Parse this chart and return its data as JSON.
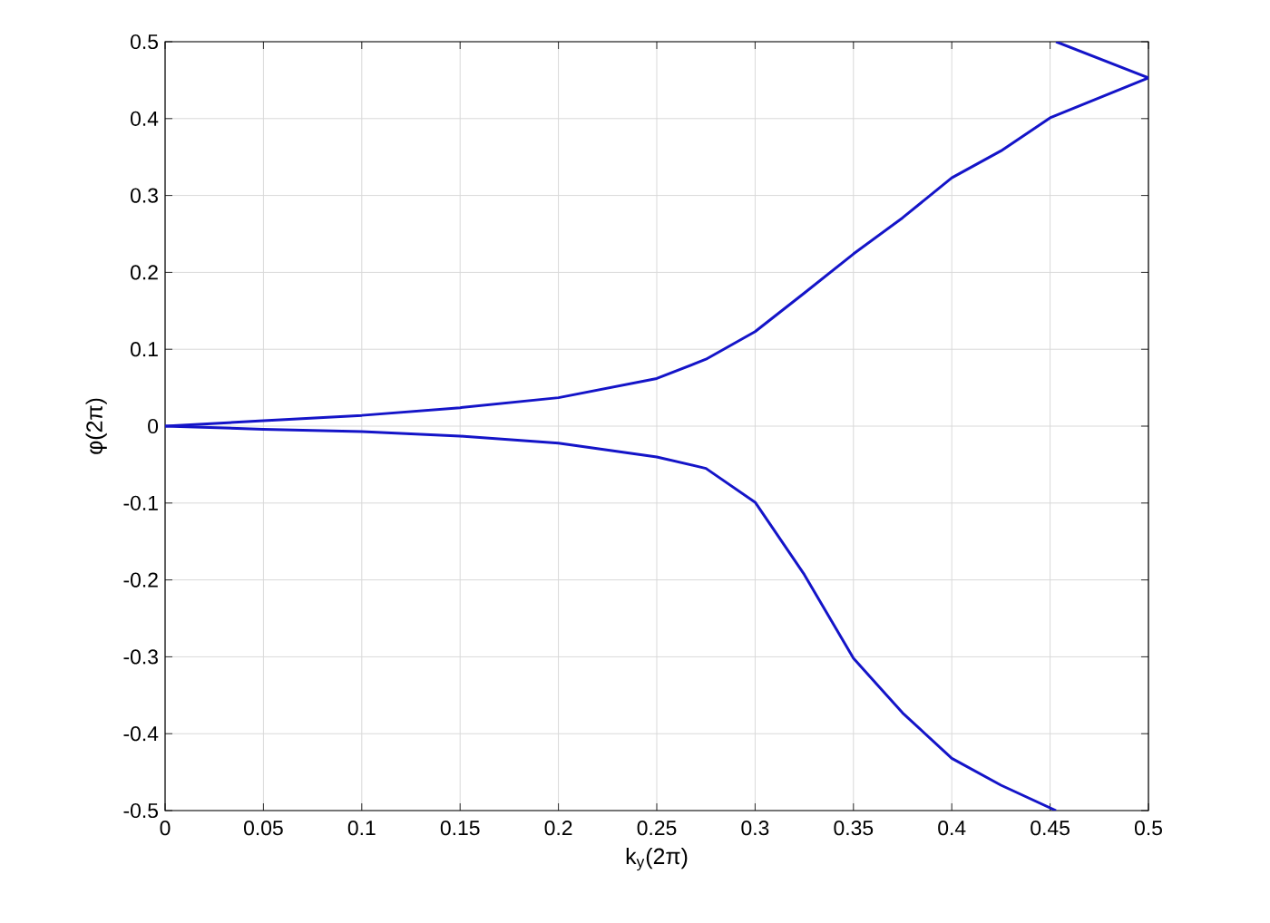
{
  "chart_data": {
    "type": "line",
    "xlabel": "k$_{y}$(2π)",
    "ylabel": "φ(2π)",
    "xlim": [
      0,
      0.5
    ],
    "ylim": [
      -0.5,
      0.5
    ],
    "xticks": [
      0,
      0.05,
      0.1,
      0.15,
      0.2,
      0.25,
      0.3,
      0.35,
      0.4,
      0.45,
      0.5
    ],
    "yticks": [
      -0.5,
      -0.4,
      -0.3,
      -0.2,
      -0.1,
      0,
      0.1,
      0.2,
      0.3,
      0.4,
      0.5
    ],
    "grid": true,
    "marker": "none",
    "line_style": "solid",
    "series": [
      {
        "color": "#1414c8",
        "x": [
          0,
          0.05,
          0.1,
          0.15,
          0.2,
          0.25,
          0.275,
          0.3,
          0.325,
          0.35,
          0.375,
          0.4,
          0.425,
          0.45,
          0.5
        ],
        "values": [
          0,
          0.007,
          0.014,
          0.024,
          0.037,
          0.062,
          0.087,
          0.123,
          0.173,
          0.224,
          0.271,
          0.323,
          0.358,
          0.401,
          0.453
        ]
      },
      {
        "color": "#1414c8",
        "x": [
          0,
          0.05,
          0.1,
          0.15,
          0.2,
          0.25,
          0.275,
          0.3,
          0.325,
          0.35,
          0.375,
          0.4,
          0.425,
          0.453
        ],
        "values": [
          0,
          -0.004,
          -0.007,
          -0.013,
          -0.022,
          -0.04,
          -0.055,
          -0.099,
          -0.193,
          -0.302,
          -0.373,
          -0.432,
          -0.467,
          -0.5
        ]
      },
      {
        "color": "#1414c8",
        "x": [
          0.453,
          0.5
        ],
        "values": [
          0.5,
          0.453
        ]
      }
    ]
  }
}
